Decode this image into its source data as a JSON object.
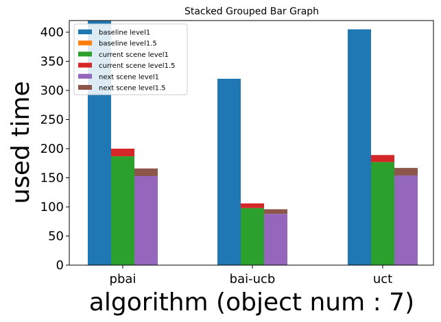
{
  "chart_data": {
    "type": "bar",
    "stacked": true,
    "grouped": true,
    "title": "Stacked Grouped Bar Graph",
    "xlabel": "algorithm (object num : 7)",
    "ylabel": "used time",
    "categories": [
      "pbai",
      "bai-ucb",
      "uct"
    ],
    "ylim": [
      0,
      420
    ],
    "yticks": [
      0,
      50,
      100,
      150,
      200,
      250,
      300,
      350,
      400
    ],
    "grid": false,
    "legend_position": "top-left",
    "groups": [
      {
        "name": "baseline",
        "series": [
          {
            "name": "baseline level1",
            "color": "#1f77b4",
            "values": [
              430,
              320,
              405
            ]
          },
          {
            "name": "baseline level1.5",
            "color": "#ff7f0e",
            "values": [
              0,
              0,
              0
            ]
          }
        ]
      },
      {
        "name": "current scene",
        "series": [
          {
            "name": "current scene level1",
            "color": "#2ca02c",
            "values": [
              187,
              98,
              177
            ]
          },
          {
            "name": "current scene level1.5",
            "color": "#d62728",
            "values": [
              13,
              8,
              12
            ]
          }
        ]
      },
      {
        "name": "next scene",
        "series": [
          {
            "name": "next scene level1",
            "color": "#9467bd",
            "values": [
              153,
              88,
              154
            ]
          },
          {
            "name": "next scene level1.5",
            "color": "#8c564b",
            "values": [
              13,
              8,
              13
            ]
          }
        ]
      }
    ]
  }
}
